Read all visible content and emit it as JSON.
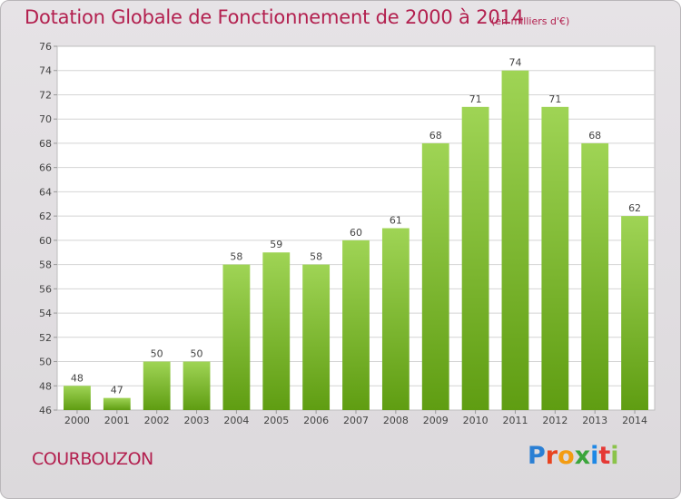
{
  "header": {
    "title": "Dotation Globale de Fonctionnement de 2000 à 2014",
    "subtitle": "(en milliers d'€)"
  },
  "footer": {
    "commune": "COURBOUZON",
    "logo_text": "Proxiti",
    "logo_colors": [
      "#2a7fd4",
      "#e8431f",
      "#f39c12",
      "#3ba53b",
      "#1e88e5",
      "#e53935",
      "#8bc34a"
    ]
  },
  "chart_data": {
    "type": "bar",
    "categories": [
      "2000",
      "2001",
      "2002",
      "2003",
      "2004",
      "2005",
      "2006",
      "2007",
      "2008",
      "2009",
      "2010",
      "2011",
      "2012",
      "2013",
      "2014"
    ],
    "values": [
      48,
      47,
      50,
      50,
      58,
      59,
      58,
      60,
      61,
      68,
      71,
      74,
      71,
      68,
      62
    ],
    "title": "Dotation Globale de Fonctionnement de 2000 à 2014",
    "ylim": [
      46,
      76
    ],
    "yticks": [
      46,
      48,
      50,
      52,
      54,
      56,
      58,
      60,
      62,
      64,
      66,
      68,
      70,
      72,
      74,
      76
    ],
    "grid": true,
    "bar_color_top": "#9fd455",
    "bar_color_bottom": "#5f9d12"
  }
}
